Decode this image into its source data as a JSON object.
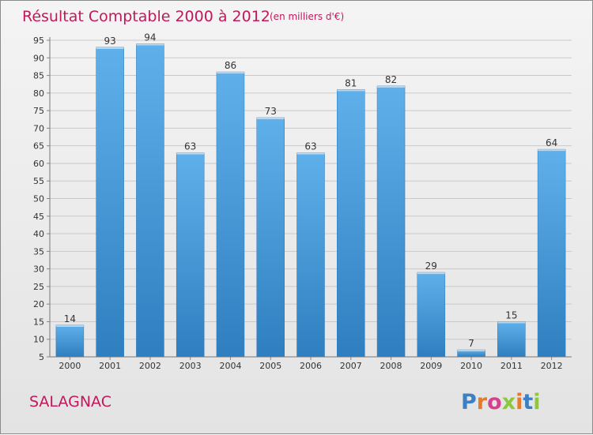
{
  "chart_data": {
    "type": "bar",
    "title": "Résultat Comptable 2000 à 2012",
    "subtitle": "(en milliers d'€)",
    "categories": [
      "2000",
      "2001",
      "2002",
      "2003",
      "2004",
      "2005",
      "2006",
      "2007",
      "2008",
      "2009",
      "2010",
      "2011",
      "2012"
    ],
    "values": [
      14,
      93,
      94,
      63,
      86,
      73,
      63,
      81,
      82,
      29,
      7,
      15,
      64
    ],
    "xlabel": "",
    "ylabel": "",
    "ylim": [
      5,
      95
    ],
    "yticks": [
      5,
      10,
      15,
      20,
      25,
      30,
      35,
      40,
      45,
      50,
      55,
      60,
      65,
      70,
      75,
      80,
      85,
      90,
      95
    ],
    "grid": true,
    "bar_color": "#4a9fde",
    "accent_color": "#c2185b"
  },
  "footer": {
    "commune": "SALAGNAC",
    "logo": "Proxiti",
    "logo_colors": [
      "#3b7fc4",
      "#e8792b",
      "#d63f8c",
      "#8dc63f",
      "#e8792b",
      "#3b7fc4",
      "#8dc63f"
    ]
  }
}
